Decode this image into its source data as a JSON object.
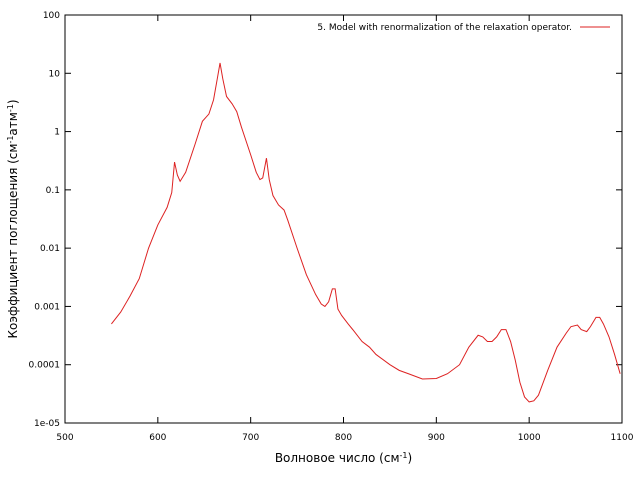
{
  "chart_data": {
    "type": "line",
    "x_label": [
      "Волновое число (см",
      "-1",
      ")"
    ],
    "y_label": [
      "Коэффициент поглощения (см",
      "-1",
      "атм",
      "-1",
      ")"
    ],
    "xlim": [
      500,
      1100
    ],
    "xticks": [
      500,
      600,
      700,
      800,
      900,
      1000,
      1100
    ],
    "ylim": [
      1e-05,
      100
    ],
    "ylog": true,
    "yticks": [
      {
        "value": 1e-05,
        "label": "1e-05"
      },
      0.0001,
      0.001,
      0.01,
      0.1,
      1,
      10,
      100
    ],
    "legend": "top-right",
    "x": [
      550,
      560,
      570,
      580,
      590,
      600,
      610,
      615,
      618,
      621,
      624,
      630,
      640,
      648,
      655,
      660,
      664,
      667,
      670,
      674,
      680,
      685,
      690,
      700,
      706,
      710,
      713,
      717,
      720,
      724,
      730,
      736,
      740,
      750,
      760,
      770,
      776,
      780,
      784,
      788,
      791,
      794,
      798,
      805,
      810,
      820,
      828,
      835,
      850,
      860,
      870,
      885,
      900,
      912,
      925,
      935,
      945,
      950,
      955,
      960,
      965,
      970,
      975,
      980,
      985,
      990,
      995,
      1000,
      1005,
      1010,
      1020,
      1030,
      1040,
      1045,
      1052,
      1056,
      1062,
      1066,
      1072,
      1076,
      1080,
      1086,
      1092,
      1098
    ],
    "series": [
      {
        "name": "5. Model with renormalization of the relaxation operator.",
        "color": "#dd2222",
        "values": [
          0.0005,
          0.0008,
          0.0015,
          0.003,
          0.01,
          0.025,
          0.05,
          0.09,
          0.3,
          0.18,
          0.14,
          0.2,
          0.6,
          1.5,
          2,
          3.5,
          8,
          15,
          8,
          4,
          3,
          2.2,
          1.2,
          0.4,
          0.2,
          0.15,
          0.16,
          0.35,
          0.15,
          0.08,
          0.055,
          0.045,
          0.03,
          0.01,
          0.0035,
          0.0016,
          0.0011,
          0.001,
          0.0012,
          0.002,
          0.002,
          0.0009,
          0.0007,
          0.0005,
          0.0004,
          0.00025,
          0.0002,
          0.00015,
          0.0001,
          8e-05,
          7e-05,
          5.7e-05,
          5.8e-05,
          7e-05,
          0.0001,
          0.0002,
          0.00032,
          0.0003,
          0.00025,
          0.00025,
          0.0003,
          0.0004,
          0.0004,
          0.00025,
          0.00012,
          5e-05,
          2.8e-05,
          2.3e-05,
          2.4e-05,
          3e-05,
          8e-05,
          0.0002,
          0.00035,
          0.00045,
          0.00048,
          0.0004,
          0.00037,
          0.00045,
          0.00065,
          0.00065,
          0.0005,
          0.0003,
          0.00015,
          7e-05
        ]
      }
    ]
  }
}
